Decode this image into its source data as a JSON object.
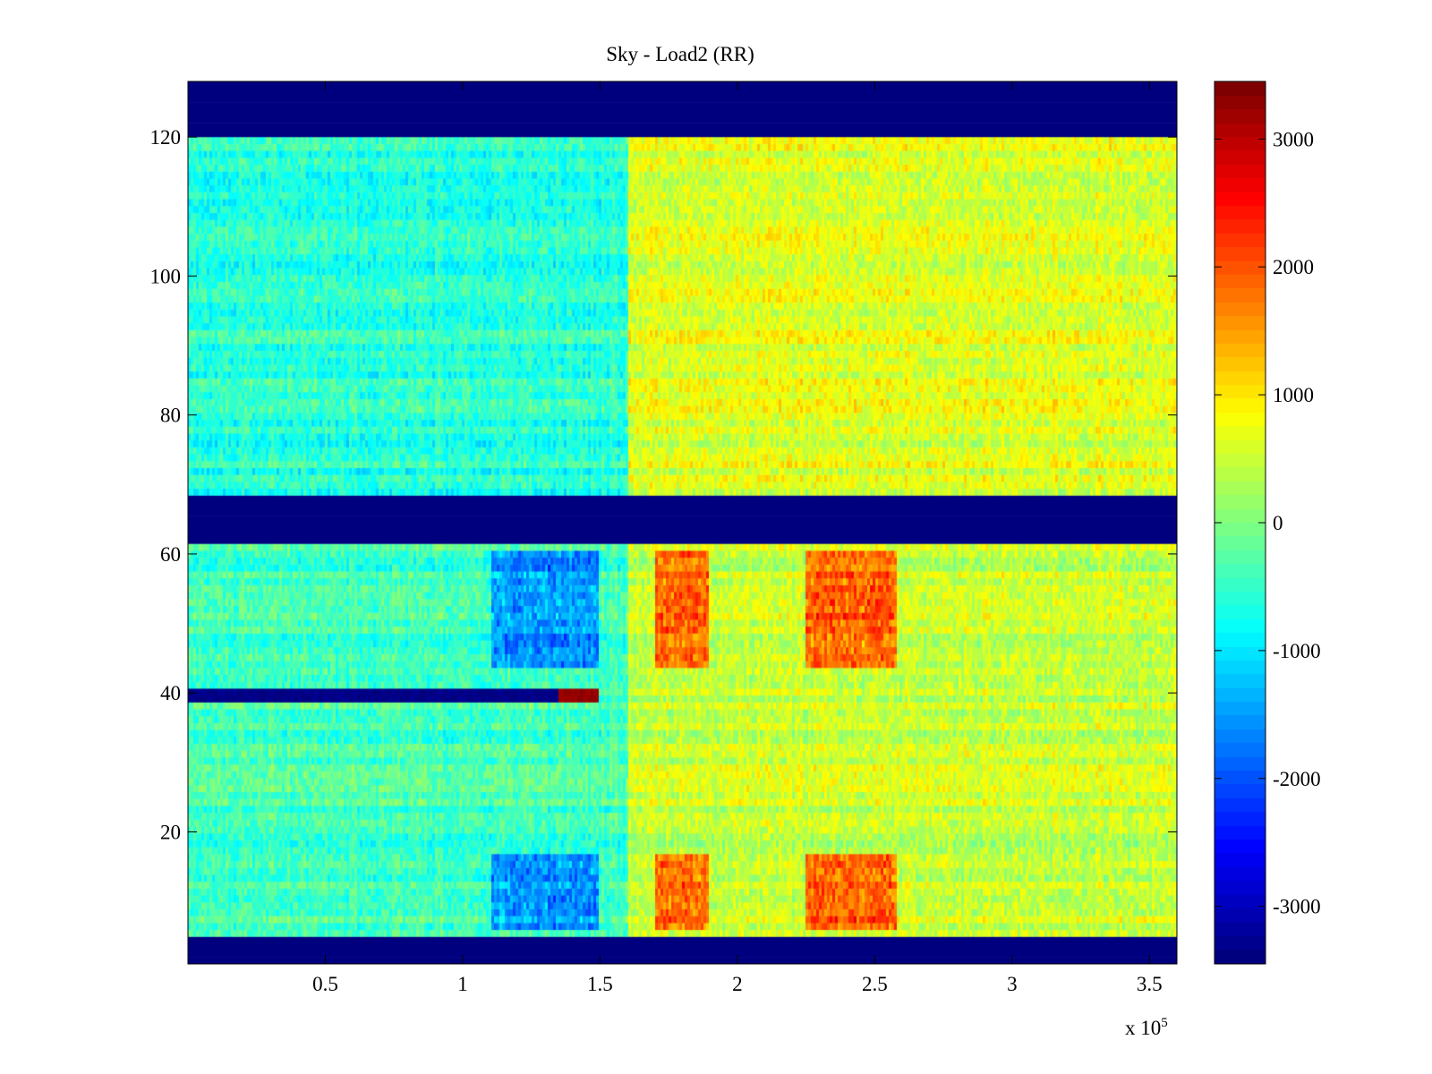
{
  "chart_data": {
    "type": "heatmap",
    "title": "Sky - Load2 (RR)",
    "xlabel": "",
    "ylabel": "",
    "x_exponent_label": "x 10",
    "x_exponent_sup": "5",
    "xlim": [
      0,
      360000
    ],
    "ylim": [
      1,
      128
    ],
    "x_ticks": [
      50000,
      100000,
      150000,
      200000,
      250000,
      300000,
      350000
    ],
    "x_tick_labels": [
      "0.5",
      "1",
      "1.5",
      "2",
      "2.5",
      "3",
      "3.5"
    ],
    "y_ticks": [
      20,
      40,
      60,
      80,
      100,
      120
    ],
    "y_tick_labels": [
      "20",
      "40",
      "60",
      "80",
      "100",
      "120"
    ],
    "colormap": "jet",
    "clim": [
      -3450,
      3450
    ],
    "colorbar": {
      "ticks": [
        -3000,
        -2000,
        -1000,
        0,
        1000,
        2000,
        3000
      ],
      "tick_labels": [
        "-3000",
        "-2000",
        "-1000",
        "0",
        "1000",
        "2000",
        "3000"
      ]
    },
    "grid": false,
    "masked_rows": [
      [
        1,
        4
      ],
      [
        62,
        68
      ],
      [
        121,
        128
      ]
    ],
    "hot_time_bands": [
      [
        170000,
        190000
      ],
      [
        225000,
        258000
      ]
    ],
    "cold_time_bands": [
      [
        110000,
        150000
      ]
    ],
    "anomalous_rows": [
      {
        "rows": [
          39,
          40
        ],
        "x_range": [
          0,
          135000
        ],
        "value": -3400
      },
      {
        "rows": [
          39,
          40
        ],
        "x_range": [
          135000,
          150000
        ],
        "value": 3300
      }
    ],
    "regions": [
      {
        "rows": [
          69,
          120
        ],
        "x_range": [
          0,
          160000
        ],
        "mean_value": -600
      },
      {
        "rows": [
          69,
          120
        ],
        "x_range": [
          160000,
          360000
        ],
        "mean_value": 650
      },
      {
        "rows": [
          5,
          61
        ],
        "x_range": [
          0,
          160000
        ],
        "mean_value": -400
      },
      {
        "rows": [
          5,
          61
        ],
        "x_range": [
          160000,
          360000
        ],
        "mean_value": 500
      }
    ]
  }
}
